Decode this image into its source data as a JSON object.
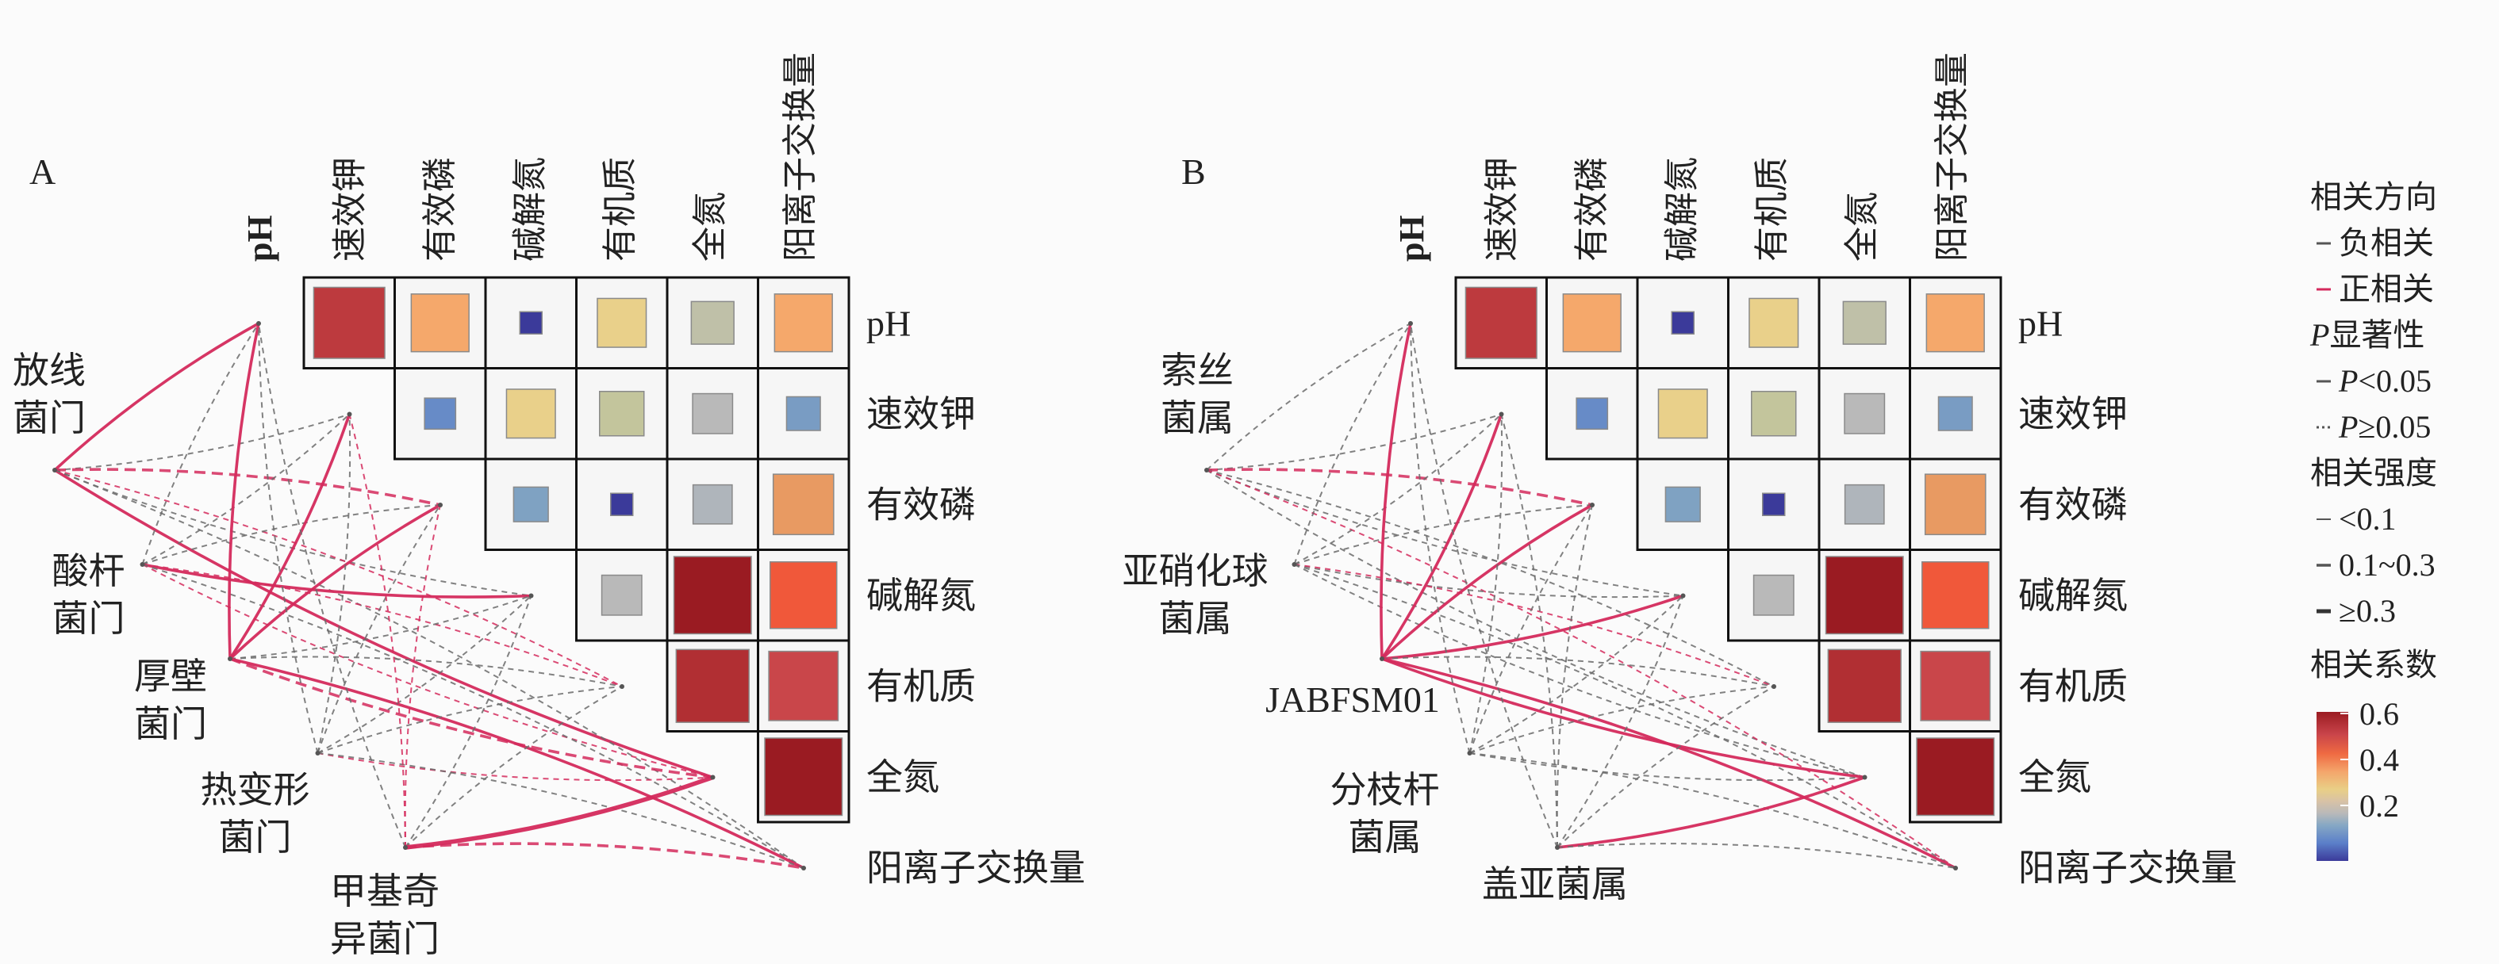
{
  "chart_data": {
    "type": "heatmap",
    "description_type": "mantel-correlation-network",
    "variables": [
      "pH",
      "速效钾",
      "有效磷",
      "碱解氮",
      "有机质",
      "全氮",
      "阳离子交换量"
    ],
    "column_labels": [
      "pH",
      "速效钾",
      "有效磷",
      "碱解氮",
      "有机质",
      "全氮",
      "阳离子交换量"
    ],
    "row_labels": [
      "pH",
      "速效钾",
      "有效磷",
      "碱解氮",
      "有机质",
      "全氮",
      "阳离子交换量"
    ],
    "correlation_upper_triangle": [
      [
        0.55,
        0.4,
        0.0,
        0.3,
        0.23,
        0.4
      ],
      [
        0.1,
        0.3,
        0.25,
        0.2,
        0.13
      ],
      [
        0.14,
        0.0,
        0.19,
        0.43
      ],
      [
        0.2,
        0.62,
        0.5
      ],
      [
        0.57,
        0.53
      ],
      [
        0.62
      ]
    ],
    "colorbar": {
      "title": "相关系数",
      "ticks": [
        "0.6",
        "0.4",
        "0.2"
      ],
      "range": [
        0.0,
        0.65
      ]
    },
    "colors": {
      "positive": "#d42a5c",
      "negative": "#6b6b6b",
      "cell_border": "#111111"
    },
    "panels": [
      {
        "letter": "A",
        "taxa": [
          {
            "lines": [
              "放线",
              "菌门"
            ],
            "links": [
              [
                "+",
                "<0.05",
                "0.1~0.3"
              ],
              [
                "-",
                ">=0.05",
                "<0.1"
              ],
              [
                "+",
                ">=0.05",
                "0.1~0.3"
              ],
              [
                "-",
                ">=0.05",
                "<0.1"
              ],
              [
                "+",
                ">=0.05",
                "<0.1"
              ],
              [
                "+",
                "<0.05",
                "0.1~0.3"
              ],
              [
                "-",
                ">=0.05",
                "<0.1"
              ]
            ]
          },
          {
            "lines": [
              "酸杆",
              "菌门"
            ],
            "links": [
              [
                "-",
                ">=0.05",
                "<0.1"
              ],
              [
                "-",
                ">=0.05",
                "<0.1"
              ],
              [
                "-",
                ">=0.05",
                "<0.1"
              ],
              [
                "+",
                "<0.05",
                "0.1~0.3"
              ],
              [
                "+",
                ">=0.05",
                "<0.1"
              ],
              [
                "+",
                ">=0.05",
                "<0.1"
              ],
              [
                "-",
                ">=0.05",
                "<0.1"
              ]
            ]
          },
          {
            "lines": [
              "厚壁",
              "菌门"
            ],
            "links": [
              [
                "+",
                "<0.05",
                "0.1~0.3"
              ],
              [
                "+",
                "<0.05",
                "0.1~0.3"
              ],
              [
                "+",
                "<0.05",
                "0.1~0.3"
              ],
              [
                "-",
                ">=0.05",
                "<0.1"
              ],
              [
                "-",
                ">=0.05",
                "<0.1"
              ],
              [
                "+",
                ">=0.05",
                "0.1~0.3"
              ],
              [
                "+",
                "<0.05",
                "0.1~0.3"
              ]
            ]
          },
          {
            "lines": [
              "热变形",
              "菌门"
            ],
            "links": [
              [
                "-",
                ">=0.05",
                "<0.1"
              ],
              [
                "-",
                ">=0.05",
                "<0.1"
              ],
              [
                "-",
                ">=0.05",
                "<0.1"
              ],
              [
                "-",
                ">=0.05",
                "<0.1"
              ],
              [
                "-",
                ">=0.05",
                "<0.1"
              ],
              [
                "+",
                ">=0.05",
                "<0.1"
              ],
              [
                "-",
                ">=0.05",
                "<0.1"
              ]
            ]
          },
          {
            "lines": [
              "甲基奇",
              "异菌门"
            ],
            "links": [
              [
                "-",
                ">=0.05",
                "<0.1"
              ],
              [
                "+",
                ">=0.05",
                "<0.1"
              ],
              [
                "+",
                ">=0.05",
                "<0.1"
              ],
              [
                "-",
                ">=0.05",
                "<0.1"
              ],
              [
                "-",
                ">=0.05",
                "<0.1"
              ],
              [
                "+",
                "<0.05",
                ">=0.3"
              ],
              [
                "+",
                ">=0.05",
                "0.1~0.3"
              ]
            ]
          }
        ]
      },
      {
        "letter": "B",
        "taxa": [
          {
            "lines": [
              "索丝",
              "菌属"
            ],
            "links": [
              [
                "-",
                ">=0.05",
                "<0.1"
              ],
              [
                "-",
                ">=0.05",
                "<0.1"
              ],
              [
                "+",
                ">=0.05",
                "0.1~0.3"
              ],
              [
                "-",
                ">=0.05",
                "<0.1"
              ],
              [
                "-",
                ">=0.05",
                "<0.1"
              ],
              [
                "-",
                ">=0.05",
                "<0.1"
              ],
              [
                "+",
                ">=0.05",
                "<0.1"
              ]
            ]
          },
          {
            "lines": [
              "亚硝化球",
              "菌属"
            ],
            "links": [
              [
                "-",
                ">=0.05",
                "<0.1"
              ],
              [
                "-",
                ">=0.05",
                "<0.1"
              ],
              [
                "-",
                ">=0.05",
                "<0.1"
              ],
              [
                "-",
                ">=0.05",
                "<0.1"
              ],
              [
                "+",
                ">=0.05",
                "<0.1"
              ],
              [
                "-",
                ">=0.05",
                "<0.1"
              ],
              [
                "-",
                ">=0.05",
                "<0.1"
              ]
            ]
          },
          {
            "lines": [
              "JABFSM01"
            ],
            "links": [
              [
                "+",
                "<0.05",
                "0.1~0.3"
              ],
              [
                "+",
                "<0.05",
                "0.1~0.3"
              ],
              [
                "+",
                "<0.05",
                "0.1~0.3"
              ],
              [
                "+",
                "<0.05",
                "0.1~0.3"
              ],
              [
                "-",
                ">=0.05",
                "<0.1"
              ],
              [
                "+",
                "<0.05",
                "0.1~0.3"
              ],
              [
                "+",
                "<0.05",
                "0.1~0.3"
              ]
            ]
          },
          {
            "lines": [
              "分枝杆",
              "菌属"
            ],
            "links": [
              [
                "-",
                ">=0.05",
                "<0.1"
              ],
              [
                "-",
                ">=0.05",
                "<0.1"
              ],
              [
                "-",
                ">=0.05",
                "<0.1"
              ],
              [
                "-",
                ">=0.05",
                "<0.1"
              ],
              [
                "-",
                ">=0.05",
                "<0.1"
              ],
              [
                "-",
                ">=0.05",
                "<0.1"
              ],
              [
                "-",
                ">=0.05",
                "<0.1"
              ]
            ]
          },
          {
            "lines": [
              "盖亚菌属"
            ],
            "links": [
              [
                "-",
                ">=0.05",
                "<0.1"
              ],
              [
                "-",
                ">=0.05",
                "<0.1"
              ],
              [
                "-",
                ">=0.05",
                "<0.1"
              ],
              [
                "-",
                ">=0.05",
                "<0.1"
              ],
              [
                "-",
                ">=0.05",
                "<0.1"
              ],
              [
                "+",
                "<0.05",
                "0.1~0.3"
              ],
              [
                "-",
                ">=0.05",
                "<0.1"
              ]
            ]
          }
        ]
      }
    ],
    "legend": {
      "direction_title": "相关方向",
      "negative": "负相关",
      "positive": "正相关",
      "p_title_italic": "P",
      "p_title_rest": "显著性",
      "p_sig_italic": "P",
      "p_sig_rest": "<0.05",
      "p_ns_italic": "P",
      "p_ns_rest": "≥0.05",
      "strength_title": "相关强度",
      "strength_low": "<0.1",
      "strength_mid": "0.1~0.3",
      "strength_high": "≥0.3"
    }
  }
}
